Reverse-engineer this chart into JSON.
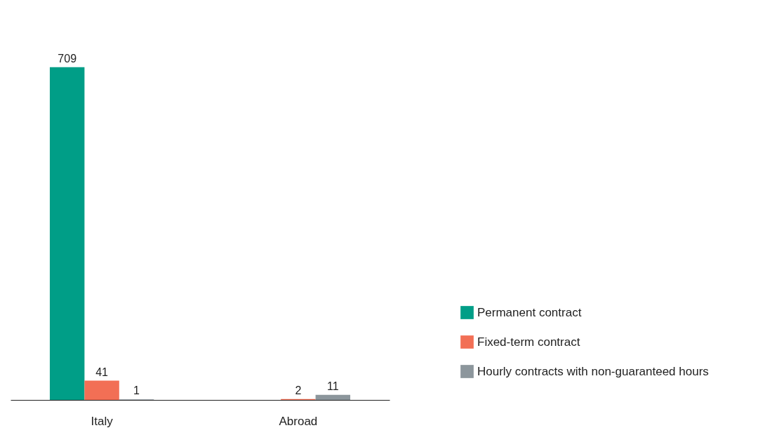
{
  "chart_data": {
    "type": "bar",
    "categories": [
      "Italy",
      "Abroad"
    ],
    "series": [
      {
        "name": "Permanent contract",
        "color": "#009e87",
        "values": [
          709,
          null
        ]
      },
      {
        "name": "Fixed-term contract",
        "color": "#f26f55",
        "values": [
          41,
          2
        ]
      },
      {
        "name": "Hourly contracts with non-guaranteed hours",
        "color": "#8c969c",
        "values": [
          1,
          11
        ]
      }
    ],
    "data_labels": true,
    "legend": "bottom right",
    "tick_labels": "x",
    "grid": false
  }
}
